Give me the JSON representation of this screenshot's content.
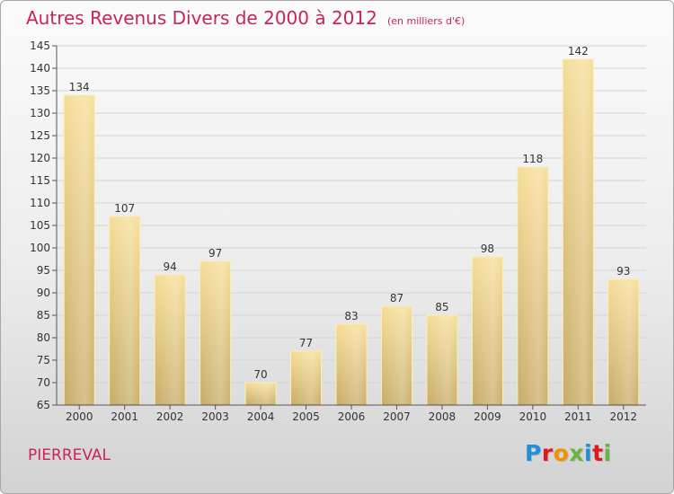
{
  "header": {
    "title": "Autres Revenus Divers de 2000 à 2012",
    "unit": "(en milliers d'€)"
  },
  "footer": {
    "commune": "PIERREVAL",
    "brand": "Proxiti",
    "brand_colors": [
      "#1f8fd6",
      "#e2161e",
      "#f39200",
      "#6cb33f",
      "#1f8fd6",
      "#e2161e",
      "#6cb33f"
    ]
  },
  "chart_data": {
    "type": "bar",
    "title": "Autres Revenus Divers de 2000 à 2012",
    "xlabel": "",
    "ylabel": "",
    "categories": [
      "2000",
      "2001",
      "2002",
      "2003",
      "2004",
      "2005",
      "2006",
      "2007",
      "2008",
      "2009",
      "2010",
      "2011",
      "2012"
    ],
    "values": [
      134,
      107,
      94,
      97,
      70,
      77,
      83,
      87,
      85,
      98,
      118,
      142,
      93
    ],
    "ylim": [
      65,
      145
    ],
    "yticks": [
      65,
      70,
      75,
      80,
      85,
      90,
      95,
      100,
      105,
      110,
      115,
      120,
      125,
      130,
      135,
      140,
      145
    ],
    "grid": true,
    "legend": "none",
    "bar_color": "#e8cc7e",
    "text_color": "#333333"
  }
}
